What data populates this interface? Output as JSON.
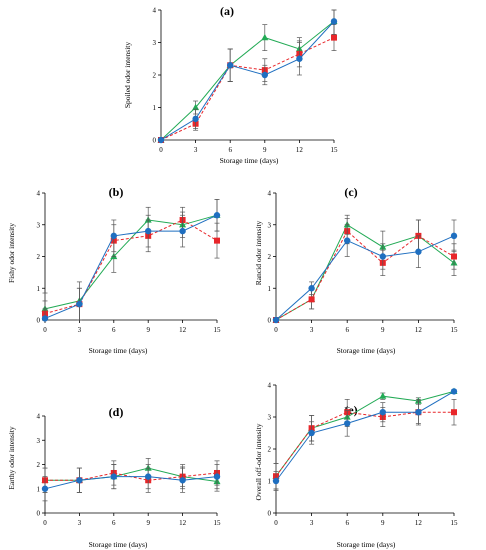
{
  "chart_data": [
    {
      "type": "line",
      "panel_label": "(a)",
      "xlabel": "Storage time (days)",
      "ylabel": "Spoiled odor intensity",
      "x": [
        0,
        3,
        6,
        9,
        12,
        15
      ],
      "xlim": [
        0,
        15
      ],
      "ylim": [
        0,
        4
      ],
      "yticks": [
        0,
        1,
        2,
        3,
        4
      ],
      "legend": "none",
      "grid": false,
      "series": [
        {
          "marker": "triangle",
          "color": "#22aa55",
          "dash": "solid",
          "values": [
            0,
            1.0,
            2.3,
            3.15,
            2.8,
            3.65
          ],
          "errors": [
            0,
            0.2,
            0.5,
            0.4,
            0.35,
            0.4
          ]
        },
        {
          "marker": "square",
          "color": "#e8262a",
          "dash": "dashed",
          "values": [
            0,
            0.5,
            2.3,
            2.15,
            2.65,
            3.15
          ],
          "errors": [
            0,
            0.2,
            0.5,
            0.35,
            0.4,
            0.4
          ]
        },
        {
          "marker": "circle",
          "color": "#1f6fc0",
          "dash": "solid",
          "values": [
            0,
            0.65,
            2.3,
            2.0,
            2.5,
            3.65
          ],
          "errors": [
            0,
            0.3,
            0.5,
            0.3,
            0.5,
            0.4
          ]
        }
      ]
    },
    {
      "type": "line",
      "panel_label": "(b)",
      "xlabel": "Storage time (days)",
      "ylabel": "Fishy odor intensity",
      "x": [
        0,
        3,
        6,
        9,
        12,
        15
      ],
      "xlim": [
        0,
        15
      ],
      "ylim": [
        0,
        4
      ],
      "yticks": [
        0,
        1,
        2,
        3,
        4
      ],
      "legend": "none",
      "grid": false,
      "series": [
        {
          "marker": "triangle",
          "color": "#22aa55",
          "dash": "solid",
          "values": [
            0.35,
            0.6,
            2.0,
            3.15,
            3.0,
            3.3
          ],
          "errors": [
            0.5,
            0.6,
            0.5,
            0.4,
            0.4,
            0.5
          ]
        },
        {
          "marker": "square",
          "color": "#e8262a",
          "dash": "dashed",
          "values": [
            0.2,
            0.5,
            2.5,
            2.65,
            3.15,
            2.5
          ],
          "errors": [
            0.4,
            0.5,
            0.5,
            0.5,
            0.4,
            0.55
          ]
        },
        {
          "marker": "circle",
          "color": "#1f6fc0",
          "dash": "solid",
          "values": [
            0.05,
            0.5,
            2.65,
            2.8,
            2.8,
            3.3
          ],
          "errors": [
            0.3,
            0.5,
            0.5,
            0.5,
            0.5,
            0.5
          ]
        }
      ]
    },
    {
      "type": "line",
      "panel_label": "(c)",
      "xlabel": "Storage time (days)",
      "ylabel": "Rancid odor intensity",
      "x": [
        0,
        3,
        6,
        9,
        12,
        15
      ],
      "xlim": [
        0,
        15
      ],
      "ylim": [
        0,
        4
      ],
      "yticks": [
        0,
        1,
        2,
        3,
        4
      ],
      "legend": "none",
      "grid": false,
      "series": [
        {
          "marker": "triangle",
          "color": "#22aa55",
          "dash": "solid",
          "values": [
            0,
            0.65,
            3.0,
            2.3,
            2.65,
            1.8
          ],
          "errors": [
            0,
            0.3,
            0.3,
            0.5,
            0.5,
            0.4
          ]
        },
        {
          "marker": "square",
          "color": "#e8262a",
          "dash": "dashed",
          "values": [
            0,
            0.65,
            2.8,
            1.8,
            2.65,
            2.0
          ],
          "errors": [
            0,
            0.3,
            0.4,
            0.4,
            0.5,
            0.4
          ]
        },
        {
          "marker": "circle",
          "color": "#1f6fc0",
          "dash": "solid",
          "values": [
            0,
            1.0,
            2.5,
            2.0,
            2.15,
            2.65
          ],
          "errors": [
            0,
            0.2,
            0.5,
            0.4,
            0.5,
            0.5
          ]
        }
      ]
    },
    {
      "type": "line",
      "panel_label": "(d)",
      "xlabel": "Storage time (days)",
      "ylabel": "Earthy odor intensity",
      "x": [
        0,
        3,
        6,
        9,
        12,
        15
      ],
      "xlim": [
        0,
        15
      ],
      "ylim": [
        0,
        4
      ],
      "yticks": [
        0,
        1,
        2,
        3,
        4
      ],
      "legend": "none",
      "grid": false,
      "series": [
        {
          "marker": "triangle",
          "color": "#22aa55",
          "dash": "solid",
          "values": [
            1.35,
            1.35,
            1.5,
            1.85,
            1.5,
            1.3
          ],
          "errors": [
            0.5,
            0.5,
            0.5,
            0.4,
            0.4,
            0.4
          ]
        },
        {
          "marker": "square",
          "color": "#e8262a",
          "dash": "dashed",
          "values": [
            1.35,
            1.35,
            1.65,
            1.35,
            1.5,
            1.65
          ],
          "errors": [
            0.5,
            0.5,
            0.5,
            0.5,
            0.5,
            0.5
          ]
        },
        {
          "marker": "circle",
          "color": "#1f6fc0",
          "dash": "solid",
          "values": [
            1.0,
            1.35,
            1.5,
            1.5,
            1.35,
            1.5
          ],
          "errors": [
            0.5,
            0.5,
            0.5,
            0.5,
            0.5,
            0.5
          ]
        }
      ]
    },
    {
      "type": "line",
      "panel_label": "(e)",
      "xlabel": "Storage time (days)",
      "ylabel": "Overall off-odor intensity",
      "x": [
        0,
        3,
        6,
        9,
        12,
        15
      ],
      "xlim": [
        0,
        15
      ],
      "ylim": [
        0,
        4
      ],
      "yticks": [
        0,
        1,
        2,
        3,
        4
      ],
      "legend": "none",
      "grid": false,
      "series": [
        {
          "marker": "triangle",
          "color": "#22aa55",
          "dash": "solid",
          "values": [
            1.15,
            2.65,
            3.0,
            3.65,
            3.5,
            3.8
          ],
          "errors": [
            0.4,
            0.4,
            0.3,
            0.1,
            0.1,
            0.05
          ]
        },
        {
          "marker": "square",
          "color": "#e8262a",
          "dash": "dashed",
          "values": [
            1.15,
            2.65,
            3.15,
            3.0,
            3.15,
            3.15
          ],
          "errors": [
            0.4,
            0.4,
            0.4,
            0.3,
            0.4,
            0.4
          ]
        },
        {
          "marker": "circle",
          "color": "#1f6fc0",
          "dash": "solid",
          "values": [
            1.0,
            2.5,
            2.8,
            3.15,
            3.15,
            3.8
          ],
          "errors": [
            0.3,
            0.35,
            0.4,
            0.3,
            0.35,
            0.05
          ]
        }
      ]
    }
  ]
}
